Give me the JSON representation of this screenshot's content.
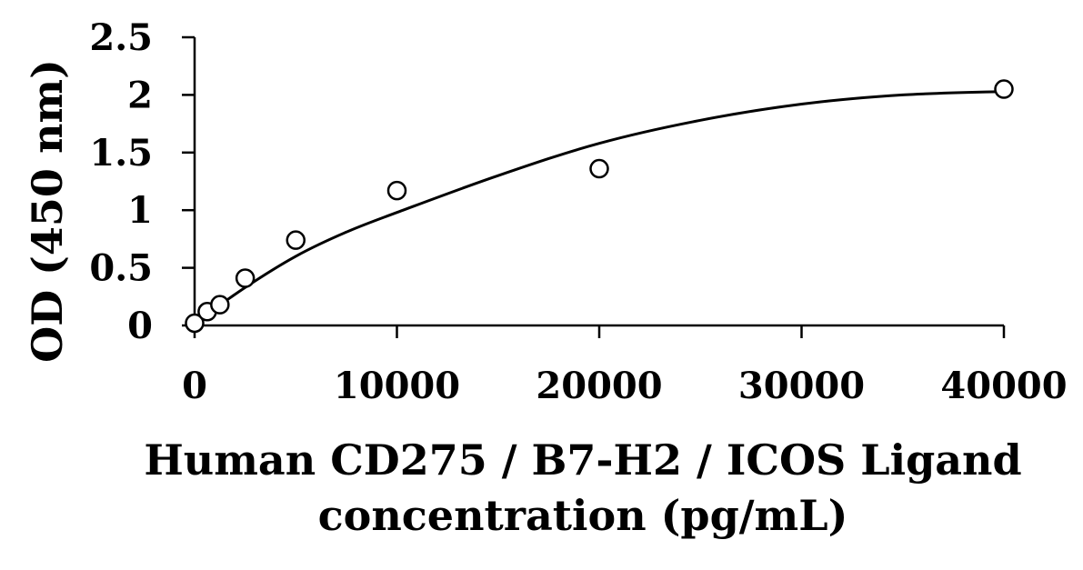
{
  "chart_data": {
    "type": "scatter",
    "xlabel_lines": [
      "Human CD275 / B7-H2 / ICOS Ligand",
      "concentration (pg/mL)"
    ],
    "ylabel": "OD (450 nm)",
    "xlim": [
      0,
      40000
    ],
    "ylim": [
      0,
      2.5
    ],
    "x_ticks": [
      0,
      10000,
      20000,
      30000,
      40000
    ],
    "x_tick_labels": [
      "0",
      "10000",
      "20000",
      "30000",
      "40000"
    ],
    "y_ticks": [
      0,
      0.5,
      1,
      1.5,
      2,
      2.5
    ],
    "y_tick_labels": [
      "0",
      "0.5",
      "1",
      "1.5",
      "2",
      "2.5"
    ],
    "grid": false,
    "legend": "none",
    "series": [
      {
        "marker": "open-circle",
        "points": [
          {
            "x": 0,
            "y": 0.02
          },
          {
            "x": 625,
            "y": 0.12
          },
          {
            "x": 1250,
            "y": 0.18
          },
          {
            "x": 2500,
            "y": 0.41
          },
          {
            "x": 5000,
            "y": 0.74
          },
          {
            "x": 10000,
            "y": 1.17
          },
          {
            "x": 20000,
            "y": 1.36
          },
          {
            "x": 40000,
            "y": 2.05
          }
        ]
      }
    ],
    "fit_curve": {
      "type": "polynomial",
      "points": [
        {
          "x": 0,
          "y": 0.02
        },
        {
          "x": 2500,
          "y": 0.33
        },
        {
          "x": 5000,
          "y": 0.6
        },
        {
          "x": 7500,
          "y": 0.81
        },
        {
          "x": 10000,
          "y": 0.98
        },
        {
          "x": 15000,
          "y": 1.3
        },
        {
          "x": 20000,
          "y": 1.58
        },
        {
          "x": 25000,
          "y": 1.78
        },
        {
          "x": 30000,
          "y": 1.92
        },
        {
          "x": 35000,
          "y": 2.0
        },
        {
          "x": 40000,
          "y": 2.03
        }
      ],
      "color": "#000000"
    },
    "marker_stroke": "#000000",
    "marker_fill": "#ffffff"
  }
}
